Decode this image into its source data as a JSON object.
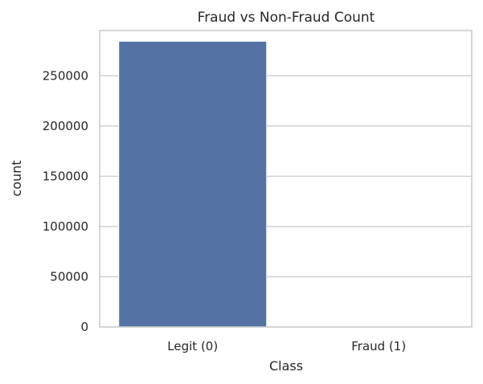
{
  "chart_data": {
    "type": "bar",
    "title": "Fraud vs Non-Fraud Count",
    "xlabel": "Class",
    "ylabel": "count",
    "categories": [
      "Legit (0)",
      "Fraud (1)"
    ],
    "values": [
      284315,
      492
    ],
    "ylim": [
      0,
      295000
    ],
    "yticks": [
      0,
      50000,
      100000,
      150000,
      200000,
      250000
    ],
    "ytick_labels": [
      "0",
      "50000",
      "100000",
      "150000",
      "200000",
      "250000"
    ],
    "grid": true,
    "grid_axis": "y",
    "bar_color": "#5572a4"
  }
}
